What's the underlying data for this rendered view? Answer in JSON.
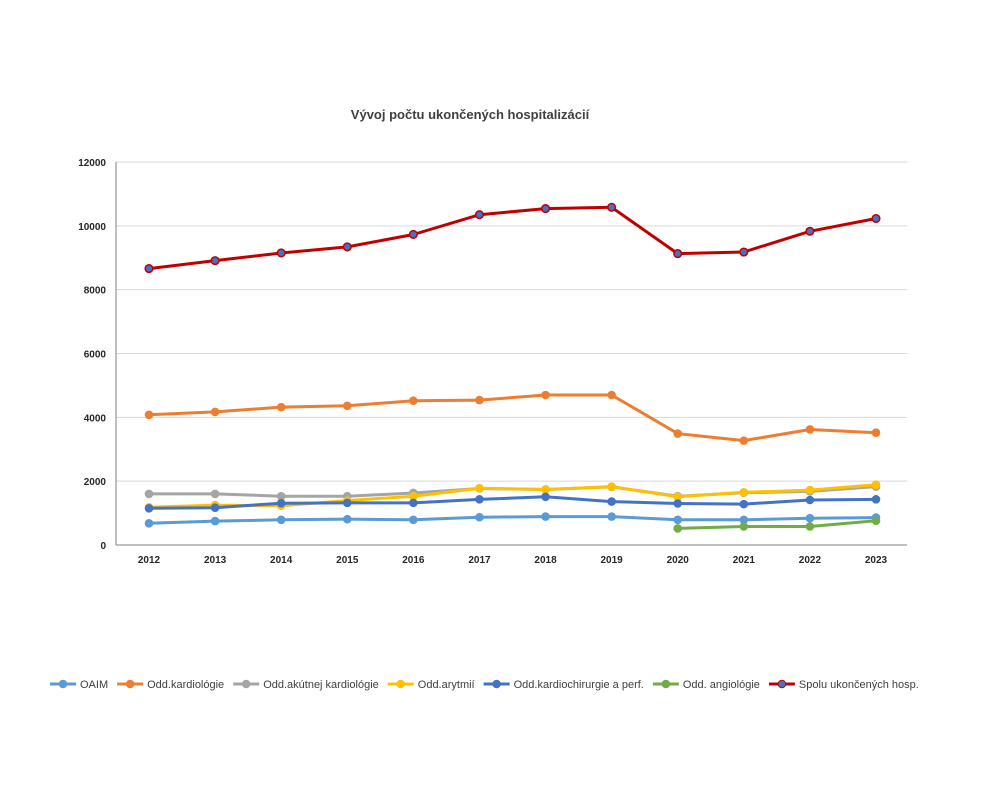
{
  "chart_data": {
    "type": "line",
    "title": "Vývoj počtu ukončených hospitalizácií",
    "xlabel": "",
    "ylabel": "",
    "ylim": [
      0,
      12000
    ],
    "yticks": [
      0,
      2000,
      4000,
      6000,
      8000,
      10000,
      12000
    ],
    "ytick_labels": [
      "0",
      "2000",
      "4000",
      "6000",
      "8000",
      "10000",
      "12000"
    ],
    "categories": [
      "2012",
      "2013",
      "2014",
      "2015",
      "2016",
      "2017",
      "2018",
      "2019",
      "2020",
      "2021",
      "2022",
      "2023"
    ],
    "grid": true,
    "legend_position": "bottom",
    "series": [
      {
        "name": "OAIM",
        "color": "#5B9BD5",
        "values": [
          680,
          750,
          790,
          810,
          790,
          870,
          890,
          890,
          790,
          790,
          840,
          860
        ]
      },
      {
        "name": "Odd.kardiológie",
        "color": "#ED7D31",
        "values": [
          4080,
          4170,
          4320,
          4360,
          4520,
          4540,
          4700,
          4700,
          3490,
          3270,
          3620,
          3520
        ]
      },
      {
        "name": "Odd.akútnej kardiológie",
        "color": "#A5A5A5",
        "values": [
          1600,
          1600,
          1530,
          1530,
          1630,
          1770,
          1740,
          1820,
          1530,
          1640,
          1680,
          1830
        ]
      },
      {
        "name": "Odd.arytmií",
        "color": "#FFC000",
        "values": [
          1180,
          1250,
          1230,
          1390,
          1530,
          1780,
          1740,
          1830,
          1510,
          1650,
          1720,
          1890
        ]
      },
      {
        "name": "Odd.kardiochirurgie a perf.",
        "color": "#4472C4",
        "values": [
          1150,
          1170,
          1310,
          1320,
          1320,
          1430,
          1510,
          1360,
          1300,
          1280,
          1410,
          1430
        ]
      },
      {
        "name": "Odd. angiológie",
        "color": "#70AD47",
        "values": [
          null,
          null,
          null,
          null,
          null,
          null,
          null,
          null,
          520,
          580,
          580,
          760
        ]
      },
      {
        "name": "Spolu ukončených hosp.",
        "color": "#C00000",
        "marker_color": "#4472C4",
        "values": [
          8660,
          8910,
          9150,
          9340,
          9730,
          10350,
          10540,
          10580,
          9130,
          9180,
          9830,
          10230
        ]
      }
    ]
  }
}
